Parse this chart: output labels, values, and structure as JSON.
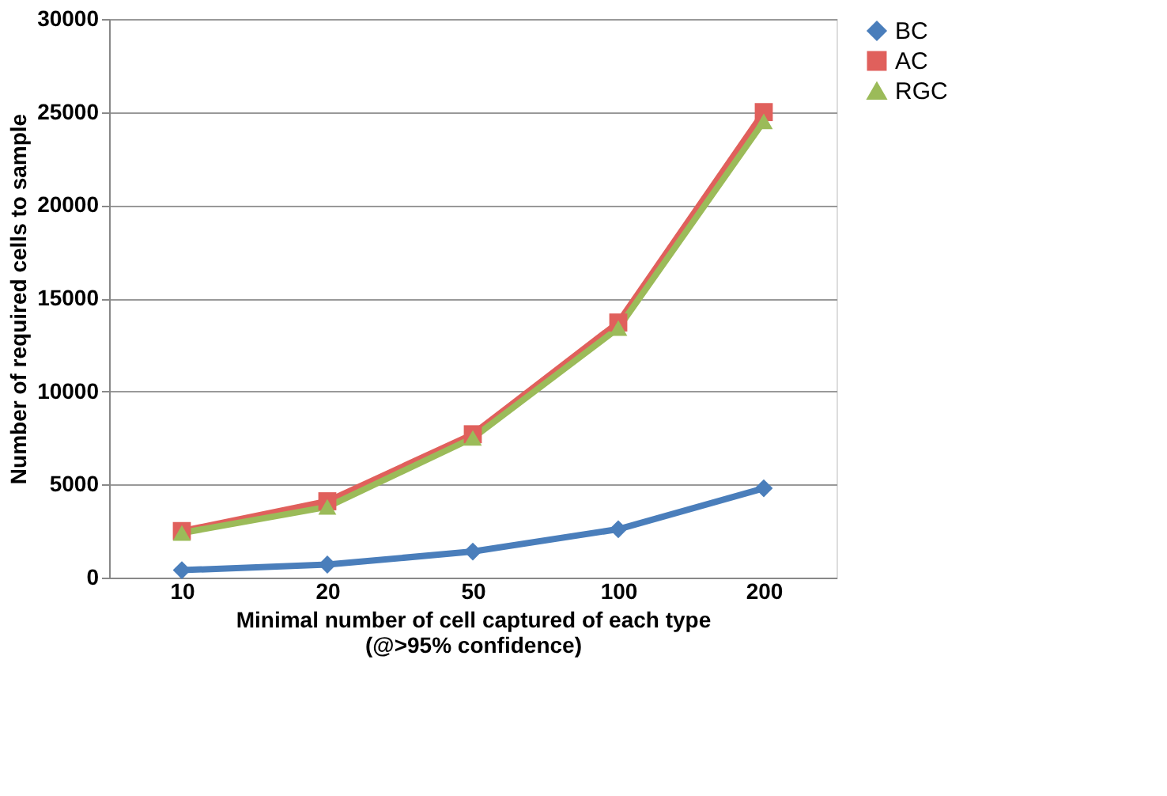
{
  "chart_data": {
    "type": "line",
    "xlabel": "Minimal number of cell captured of each type\n(@>95% confidence)",
    "ylabel": "Number of required cells to sample",
    "categories": [
      "10",
      "20",
      "50",
      "100",
      "200"
    ],
    "series": [
      {
        "name": "BC",
        "color": "#4a7ebb",
        "marker": "diamond",
        "values": [
          400,
          700,
          1400,
          2600,
          4800
        ]
      },
      {
        "name": "AC",
        "color": "#e0605c",
        "marker": "square",
        "values": [
          2500,
          4100,
          7700,
          13700,
          25000
        ]
      },
      {
        "name": "RGC",
        "color": "#9bbb59",
        "marker": "triangle",
        "values": [
          2400,
          3800,
          7500,
          13400,
          24500
        ]
      }
    ],
    "ylim": [
      0,
      30000
    ],
    "yticks": [
      0,
      5000,
      10000,
      15000,
      20000,
      25000,
      30000
    ],
    "grid": "y",
    "legend": "right"
  }
}
